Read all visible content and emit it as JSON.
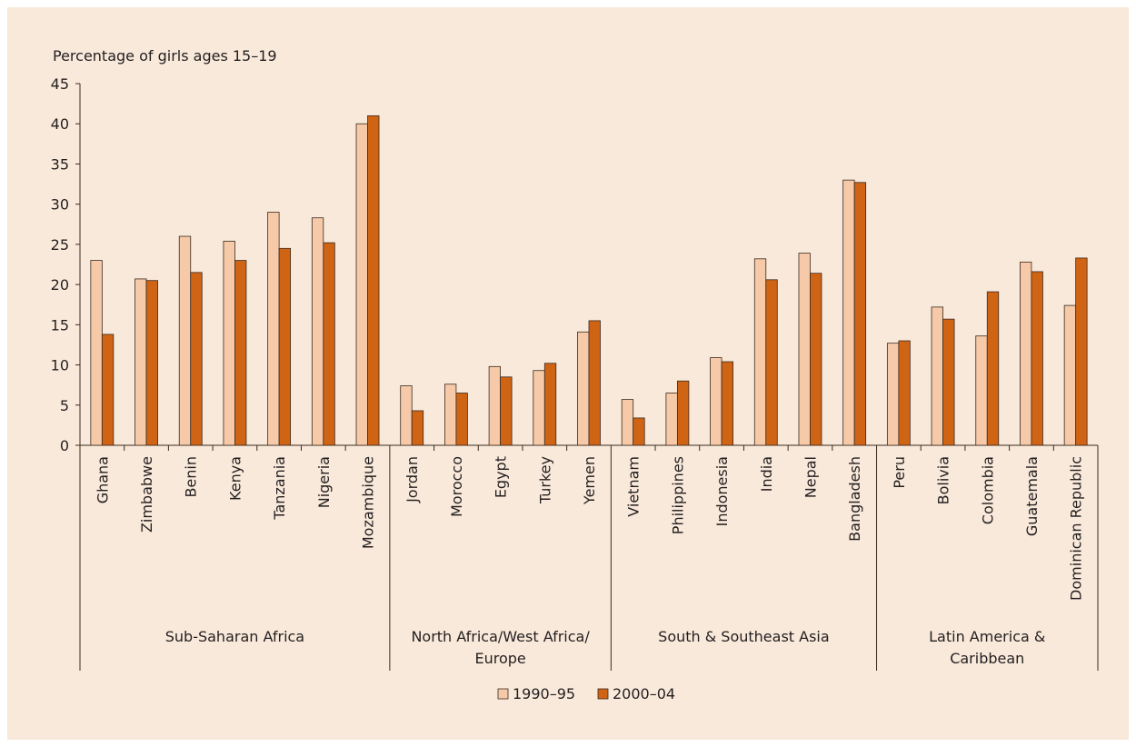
{
  "chart_data": {
    "type": "bar",
    "ylabel": "Percentage of girls ages 15–19",
    "ylim": [
      0,
      45
    ],
    "yticks": [
      "0",
      "5",
      "10",
      "15",
      "20",
      "25",
      "30",
      "35",
      "40",
      "45"
    ],
    "grid": false,
    "legend_position": "bottom-center",
    "colors": {
      "1990–95": "#f6c9a8",
      "2000–04": "#cf6415"
    },
    "categories": [
      "Ghana",
      "Zimbabwe",
      "Benin",
      "Kenya",
      "Tanzania",
      "Nigeria",
      "Mozambique",
      "Jordan",
      "Morocco",
      "Egypt",
      "Turkey",
      "Yemen",
      "Vietnam",
      "Philippines",
      "Indonesia",
      "India",
      "Nepal",
      "Bangladesh",
      "Peru",
      "Bolivia",
      "Colombia",
      "Guatemala",
      "Dominican Republic"
    ],
    "series": [
      {
        "name": "1990–95",
        "values": [
          23.0,
          20.7,
          26.0,
          25.4,
          29.0,
          28.3,
          40.0,
          7.4,
          7.6,
          9.8,
          9.3,
          14.1,
          5.7,
          6.5,
          10.9,
          23.2,
          23.9,
          33.0,
          12.7,
          17.2,
          13.6,
          22.8,
          17.4
        ]
      },
      {
        "name": "2000–04",
        "values": [
          13.8,
          20.5,
          21.5,
          23.0,
          24.5,
          25.2,
          41.0,
          4.3,
          6.5,
          8.5,
          10.2,
          15.5,
          3.4,
          8.0,
          10.4,
          20.6,
          21.4,
          32.7,
          13.0,
          15.7,
          19.1,
          21.6,
          23.3
        ]
      }
    ],
    "groups": [
      {
        "label_lines": [
          "Sub-Saharan Africa"
        ],
        "count": 7
      },
      {
        "label_lines": [
          "North Africa/West Africa/",
          "Europe"
        ],
        "count": 5
      },
      {
        "label_lines": [
          "South & Southeast Asia"
        ],
        "count": 6
      },
      {
        "label_lines": [
          "Latin America &",
          "Caribbean"
        ],
        "count": 5
      }
    ]
  }
}
